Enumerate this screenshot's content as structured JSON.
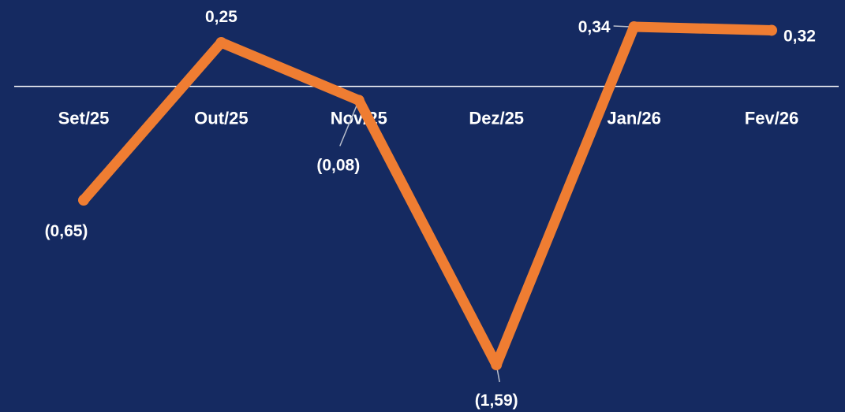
{
  "colors": {
    "background": "#152a61",
    "line": "#ef7d32",
    "axis": "#ffffff",
    "leader": "#b9bfcc",
    "text": "#ffffff"
  },
  "chart_data": {
    "type": "line",
    "categories": [
      "Set/25",
      "Out/25",
      "Nov/25",
      "Dez/25",
      "Jan/26",
      "Fev/26"
    ],
    "series": [
      {
        "values": [
          -0.65,
          0.25,
          -0.08,
          -1.59,
          0.34,
          0.32
        ]
      }
    ],
    "data_labels": [
      "(0,65)",
      "0,25",
      "(0,08)",
      "(1,59)",
      "0,34",
      "0,32"
    ],
    "ylim": [
      -1.59,
      0.34
    ],
    "grid": false,
    "legend": "none",
    "markers": true
  }
}
